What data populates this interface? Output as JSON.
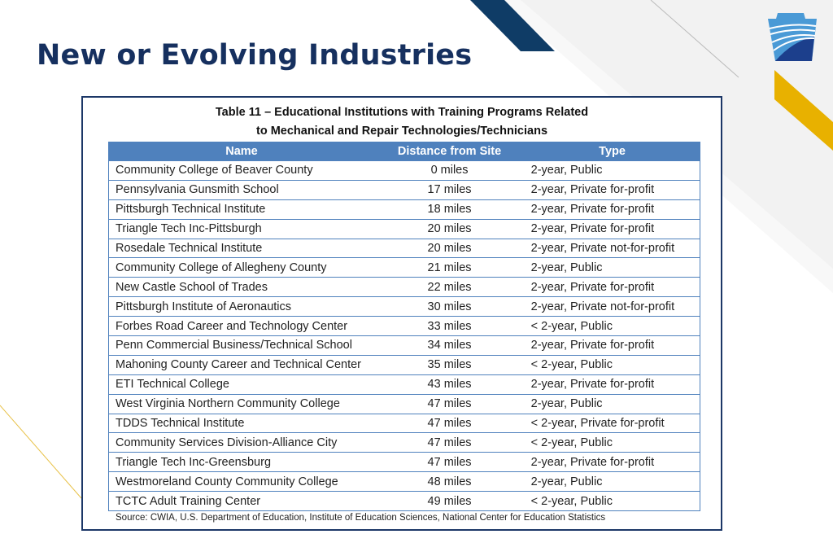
{
  "slide": {
    "title": "New or Evolving Industries"
  },
  "table": {
    "caption_line1": "Table 11 – Educational Institutions with Training Programs Related",
    "caption_line2": "to Mechanical and Repair Technologies/Technicians",
    "headers": [
      "Name",
      "Distance from Site",
      "Type"
    ],
    "rows": [
      [
        "Community College of Beaver County",
        "0 miles",
        "2-year, Public"
      ],
      [
        "Pennsylvania Gunsmith School",
        "17 miles",
        "2-year, Private for-profit"
      ],
      [
        "Pittsburgh Technical Institute",
        "18 miles",
        "2-year, Private for-profit"
      ],
      [
        "Triangle Tech Inc-Pittsburgh",
        "20 miles",
        "2-year, Private for-profit"
      ],
      [
        "Rosedale Technical Institute",
        "20 miles",
        "2-year, Private not-for-profit"
      ],
      [
        "Community College of Allegheny County",
        "21 miles",
        "2-year, Public"
      ],
      [
        "New Castle School of Trades",
        "22 miles",
        "2-year, Private for-profit"
      ],
      [
        "Pittsburgh Institute of Aeronautics",
        "30 miles",
        "2-year, Private not-for-profit"
      ],
      [
        "Forbes Road Career and Technology Center",
        "33 miles",
        "< 2-year, Public"
      ],
      [
        "Penn Commercial Business/Technical School",
        "34 miles",
        "2-year, Private for-profit"
      ],
      [
        "Mahoning County Career and Technical Center",
        "35 miles",
        "< 2-year, Public"
      ],
      [
        "ETI Technical College",
        "43 miles",
        "2-year, Private for-profit"
      ],
      [
        "West Virginia Northern Community College",
        "47 miles",
        "2-year, Public"
      ],
      [
        "TDDS Technical Institute",
        "47 miles",
        "< 2-year, Private for-profit"
      ],
      [
        "Community Services Division-Alliance City",
        "47 miles",
        "< 2-year, Public"
      ],
      [
        "Triangle Tech Inc-Greensburg",
        "47 miles",
        "2-year, Private for-profit"
      ],
      [
        "Westmoreland County Community College",
        "48 miles",
        "2-year, Public"
      ],
      [
        "TCTC Adult Training Center",
        "49 miles",
        "< 2-year, Public"
      ]
    ],
    "source": "Source: CWIA, U.S. Department of Education, Institute of Education Sciences, National Center for Education Statistics"
  },
  "colors": {
    "navy": "#16305f",
    "header_blue": "#4f81bd",
    "gold": "#e8b100",
    "logo_light": "#4a9ad6",
    "logo_dark": "#1c3f8c"
  },
  "icons": {
    "logo": "keystone-logo"
  }
}
